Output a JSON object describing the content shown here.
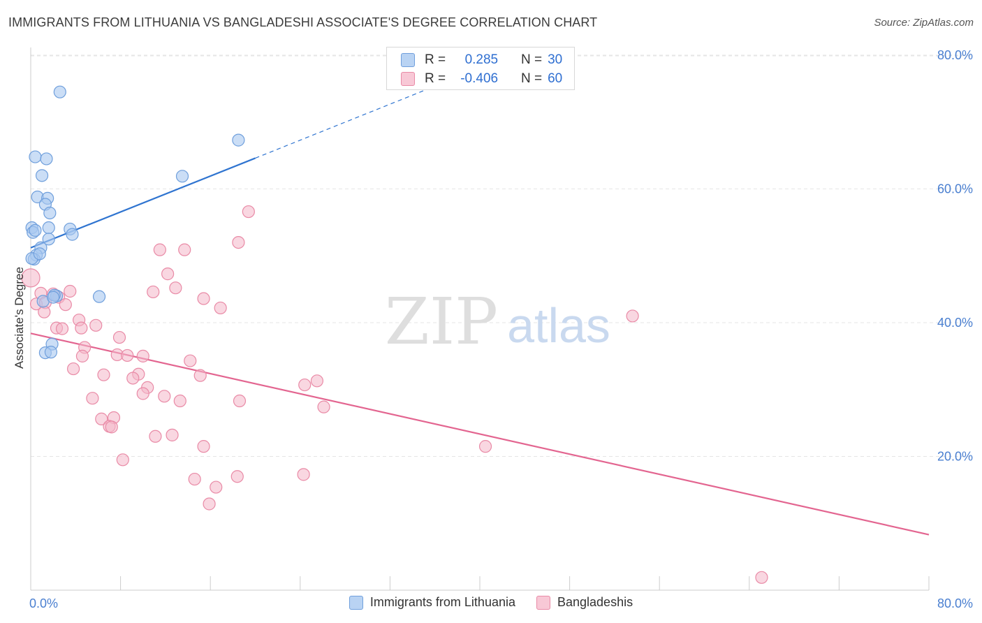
{
  "title": "IMMIGRANTS FROM LITHUANIA VS BANGLADESHI ASSOCIATE'S DEGREE CORRELATION CHART",
  "source": "Source: ZipAtlas.com",
  "watermark": {
    "zip": "ZIP",
    "atlas": "atlas"
  },
  "stats": [
    {
      "r_label": "R =",
      "r": "0.285",
      "n_label": "N =",
      "n": "30"
    },
    {
      "r_label": "R =",
      "r": "-0.406",
      "n_label": "N =",
      "n": "60"
    }
  ],
  "legend": [
    "Immigrants from Lithuania",
    "Bangladeshis"
  ],
  "colors": {
    "blue_fill": "#a9c8f0",
    "blue_stroke": "#6f9fdc",
    "blue_line": "#2f74d0",
    "pink_fill": "#f4b6c8",
    "pink_stroke": "#e98aa6",
    "pink_line": "#e36590",
    "axis_text": "#4a7fd0",
    "grid": "#e5e5e5"
  },
  "chart_data": {
    "type": "scatter",
    "title": "IMMIGRANTS FROM LITHUANIA VS BANGLADESHI ASSOCIATE'S DEGREE CORRELATION CHART",
    "xlabel": "",
    "ylabel": "Associate's Degree",
    "xlim": [
      0,
      80
    ],
    "ylim": [
      0,
      80
    ],
    "x_tick_labels": [
      "0.0%",
      "80.0%"
    ],
    "y_tick_labels": [
      "20.0%",
      "40.0%",
      "60.0%",
      "80.0%"
    ],
    "y_ticks": [
      20,
      40,
      60,
      80
    ],
    "grid": true,
    "legend_position": "bottom",
    "series": [
      {
        "name": "Immigrants from Lithuania",
        "color": "#a9c8f0",
        "points": [
          [
            2.6,
            74.5
          ],
          [
            0.4,
            64.8
          ],
          [
            1.4,
            64.5
          ],
          [
            1.0,
            62.0
          ],
          [
            13.5,
            61.9
          ],
          [
            18.5,
            67.3
          ],
          [
            0.6,
            58.8
          ],
          [
            1.5,
            58.6
          ],
          [
            1.3,
            57.7
          ],
          [
            1.7,
            56.4
          ],
          [
            0.1,
            54.2
          ],
          [
            0.2,
            53.5
          ],
          [
            1.6,
            54.2
          ],
          [
            3.5,
            54.0
          ],
          [
            3.7,
            53.2
          ],
          [
            1.6,
            52.5
          ],
          [
            0.9,
            51.2
          ],
          [
            0.5,
            50.1
          ],
          [
            0.3,
            49.5
          ],
          [
            2.3,
            44.0
          ],
          [
            2.1,
            44.1
          ],
          [
            6.1,
            43.9
          ],
          [
            1.1,
            43.2
          ],
          [
            1.9,
            36.8
          ],
          [
            1.3,
            35.5
          ],
          [
            1.8,
            35.6
          ],
          [
            0.4,
            53.8
          ],
          [
            0.1,
            49.6
          ],
          [
            0.8,
            50.3
          ],
          [
            2.0,
            43.8
          ]
        ],
        "trend": {
          "x": [
            0,
            20
          ],
          "y": [
            51.2,
            64.6
          ]
        },
        "trend_dashed": {
          "x": [
            20,
            36.5
          ],
          "y": [
            64.6,
            75.7
          ]
        }
      },
      {
        "name": "Bangladeshis",
        "color": "#f4b6c8",
        "points": [
          [
            0.0,
            46.7
          ],
          [
            0.5,
            42.8
          ],
          [
            0.9,
            44.4
          ],
          [
            1.3,
            43.0
          ],
          [
            1.2,
            41.6
          ],
          [
            2.0,
            44.3
          ],
          [
            2.5,
            43.8
          ],
          [
            3.1,
            42.7
          ],
          [
            3.5,
            44.7
          ],
          [
            2.3,
            39.2
          ],
          [
            2.8,
            39.1
          ],
          [
            4.3,
            40.4
          ],
          [
            4.5,
            39.2
          ],
          [
            5.8,
            39.6
          ],
          [
            4.8,
            36.3
          ],
          [
            4.6,
            35.0
          ],
          [
            7.9,
            37.8
          ],
          [
            3.8,
            33.1
          ],
          [
            6.5,
            32.2
          ],
          [
            7.7,
            35.2
          ],
          [
            8.6,
            35.1
          ],
          [
            10.0,
            35.0
          ],
          [
            9.6,
            32.3
          ],
          [
            9.1,
            31.7
          ],
          [
            10.4,
            30.3
          ],
          [
            10.0,
            29.4
          ],
          [
            11.9,
            29.0
          ],
          [
            13.3,
            28.3
          ],
          [
            5.5,
            28.7
          ],
          [
            6.3,
            25.6
          ],
          [
            7.4,
            25.8
          ],
          [
            7.0,
            24.5
          ],
          [
            7.2,
            24.4
          ],
          [
            11.1,
            23.0
          ],
          [
            12.6,
            23.2
          ],
          [
            8.2,
            19.5
          ],
          [
            11.5,
            50.9
          ],
          [
            13.7,
            50.9
          ],
          [
            12.2,
            47.3
          ],
          [
            12.9,
            45.2
          ],
          [
            10.9,
            44.6
          ],
          [
            15.4,
            43.6
          ],
          [
            16.9,
            42.2
          ],
          [
            14.2,
            34.3
          ],
          [
            15.1,
            32.1
          ],
          [
            15.4,
            21.5
          ],
          [
            14.6,
            16.6
          ],
          [
            16.5,
            15.4
          ],
          [
            15.9,
            12.9
          ],
          [
            18.4,
            17.0
          ],
          [
            18.6,
            28.3
          ],
          [
            18.5,
            52.0
          ],
          [
            19.4,
            56.6
          ],
          [
            24.4,
            30.7
          ],
          [
            25.5,
            31.3
          ],
          [
            26.1,
            27.4
          ],
          [
            24.3,
            17.3
          ],
          [
            40.5,
            21.5
          ],
          [
            53.6,
            41.0
          ],
          [
            65.1,
            1.9
          ]
        ],
        "trend": {
          "x": [
            0,
            80
          ],
          "y": [
            38.4,
            8.3
          ]
        }
      }
    ]
  }
}
